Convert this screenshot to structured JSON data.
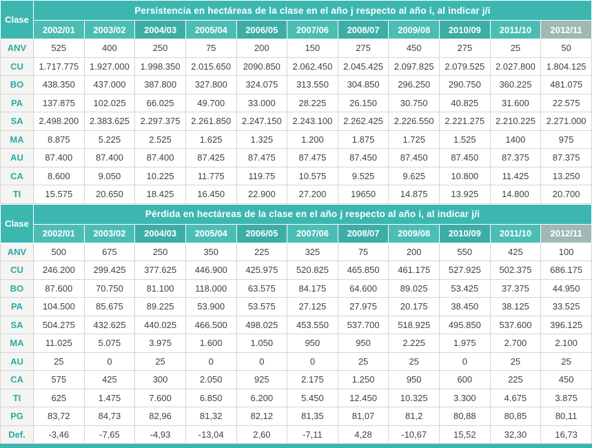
{
  "palette": {
    "teal_base": "#3cb7b0",
    "teal_year_light": "#4cbdb5",
    "teal_year_dark": "#3dada7",
    "teal_year_last": "#9fb8b5",
    "header_text": "#ffffff",
    "row_label_text": "#2ba9a2",
    "row_label_bg": "#f4f4f3",
    "cell_text": "#404040",
    "grid_line": "#d4d4d4"
  },
  "chart_data": [
    {
      "type": "table",
      "title": "Persistencia en hectáreas de la clase en el año j respecto al año i, al indicar j/i",
      "corner_label": "Clase",
      "columns": [
        "2002/01",
        "2003/02",
        "2004/03",
        "2005/04",
        "2006/05",
        "2007/06",
        "2008/07",
        "2009/08",
        "2010/09",
        "2011/10",
        "2012/11"
      ],
      "rows": [
        {
          "label": "ANV",
          "values": [
            "525",
            "400",
            "250",
            "75",
            "200",
            "150",
            "275",
            "450",
            "275",
            "25",
            "50"
          ]
        },
        {
          "label": "CU",
          "values": [
            "1.717.775",
            "1.927.000",
            "1.998.350",
            "2.015.650",
            "2090.850",
            "2.062.450",
            "2.045.425",
            "2.097.825",
            "2.079.525",
            "2.027.800",
            "1.804.125"
          ]
        },
        {
          "label": "BO",
          "values": [
            "438.350",
            "437.000",
            "387.800",
            "327.800",
            "324.075",
            "313.550",
            "304.850",
            "296.250",
            "290.750",
            "360.225",
            "481.075"
          ]
        },
        {
          "label": "PA",
          "values": [
            "137.875",
            "102.025",
            "66.025",
            "49.700",
            "33.000",
            "28.225",
            "26.150",
            "30.750",
            "40.825",
            "31.600",
            "22.575"
          ]
        },
        {
          "label": "SA",
          "values": [
            "2.498.200",
            "2.383.625",
            "2.297.375",
            "2.261.850",
            "2.247.150",
            "2.243.100",
            "2.262.425",
            "2.226.550",
            "2.221.275",
            "2.210.225",
            "2.271.000"
          ]
        },
        {
          "label": "MA",
          "values": [
            "8.875",
            "5.225",
            "2.525",
            "1.625",
            "1.325",
            "1.200",
            "1.875",
            "1.725",
            "1.525",
            "1400",
            "975"
          ]
        },
        {
          "label": "AU",
          "values": [
            "87.400",
            "87.400",
            "87.400",
            "87.425",
            "87.475",
            "87.475",
            "87.450",
            "87.450",
            "87.450",
            "87.375",
            "87.375"
          ]
        },
        {
          "label": "CA",
          "values": [
            "8.600",
            "9.050",
            "10.225",
            "11.775",
            "119.75",
            "10.575",
            "9.525",
            "9.625",
            "10.800",
            "11.425",
            "13.250"
          ]
        },
        {
          "label": "TI",
          "values": [
            "15.575",
            "20.650",
            "18.425",
            "16.450",
            "22.900",
            "27.200",
            "19650",
            "14.875",
            "13.925",
            "14.800",
            "20.700"
          ]
        }
      ]
    },
    {
      "type": "table",
      "title": "Pérdida en hectáreas de la clase en el año j respecto al año i, al indicar j/i",
      "corner_label": "Clase",
      "columns": [
        "2002/01",
        "2003/02",
        "2004/03",
        "2005/04",
        "2006/05",
        "2007/06",
        "2008/07",
        "2009/08",
        "2010/09",
        "2011/10",
        "2012/11"
      ],
      "rows": [
        {
          "label": "ANV",
          "values": [
            "500",
            "675",
            "250",
            "350",
            "225",
            "325",
            "75",
            "200",
            "550",
            "425",
            "100"
          ]
        },
        {
          "label": "CU",
          "values": [
            "246.200",
            "299.425",
            "377.625",
            "446.900",
            "425.975",
            "520.825",
            "465.850",
            "461.175",
            "527.925",
            "502.375",
            "686.175"
          ]
        },
        {
          "label": "BO",
          "values": [
            "87.600",
            "70.750",
            "81.100",
            "118.000",
            "63.575",
            "84.175",
            "64.600",
            "89.025",
            "53.425",
            "37.375",
            "44.950"
          ]
        },
        {
          "label": "PA",
          "values": [
            "104.500",
            "85.675",
            "89.225",
            "53.900",
            "53.575",
            "27.125",
            "27.975",
            "20.175",
            "38.450",
            "38.125",
            "33.525"
          ]
        },
        {
          "label": "SA",
          "values": [
            "504.275",
            "432.625",
            "440.025",
            "466.500",
            "498.025",
            "453.550",
            "537.700",
            "518.925",
            "495.850",
            "537.600",
            "396.125"
          ]
        },
        {
          "label": "MA",
          "values": [
            "11.025",
            "5.075",
            "3.975",
            "1.600",
            "1.050",
            "950",
            "950",
            "2.225",
            "1.975",
            "2.700",
            "2.100"
          ]
        },
        {
          "label": "AU",
          "values": [
            "25",
            "0",
            "25",
            "0",
            "0",
            "0",
            "25",
            "25",
            "0",
            "25",
            "25"
          ]
        },
        {
          "label": "CA",
          "values": [
            "575",
            "425",
            "300",
            "2.050",
            "925",
            "2.175",
            "1.250",
            "950",
            "600",
            "225",
            "450"
          ]
        },
        {
          "label": "TI",
          "values": [
            "625",
            "1.475",
            "7.600",
            "6.850",
            "6.200",
            "5.450",
            "12.450",
            "10.325",
            "3.300",
            "4.675",
            "3.875"
          ]
        },
        {
          "label": "PG",
          "values": [
            "83,72",
            "84,73",
            "82,96",
            "81,32",
            "82,12",
            "81,35",
            "81,07",
            "81,2",
            "80,88",
            "80,85",
            "80,11"
          ]
        },
        {
          "label": "Def.",
          "values": [
            "-3,46",
            "-7,65",
            "-4,93",
            "-13,04",
            "2,60",
            "-7,11",
            "4,28",
            "-10,67",
            "15,52",
            "32,30",
            "16,73"
          ]
        }
      ]
    }
  ]
}
